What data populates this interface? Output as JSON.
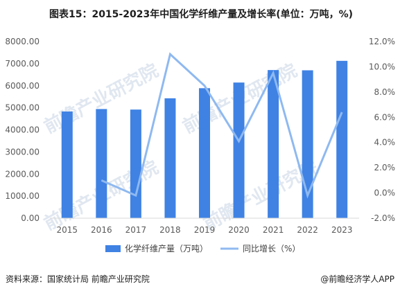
{
  "title": "图表15：2015-2023年中国化学纤维产量及增长率(单位：万吨，%)",
  "footer": {
    "source": "资料来源：国家统计局 前瞻产业研究院",
    "brand": "@前瞻经济学人APP"
  },
  "watermark": {
    "text": "前瞻产业研究院"
  },
  "colors": {
    "bar": "#3f82e4",
    "line": "#8fb9f0",
    "grid": "#d9d9d9",
    "axis_text": "#595959"
  },
  "chart_data": {
    "type": "bar",
    "categories": [
      "2015",
      "2016",
      "2017",
      "2018",
      "2019",
      "2020",
      "2021",
      "2022",
      "2023"
    ],
    "series": [
      {
        "name": "化学纤维产量（万吨）",
        "type": "bar",
        "axis": "left",
        "values": [
          4832,
          4944,
          4920,
          5430,
          5888,
          6144,
          6709,
          6698,
          7127
        ]
      },
      {
        "name": "同比增长（%）",
        "type": "line",
        "axis": "right",
        "values": [
          null,
          1.0,
          -0.2,
          11.0,
          8.5,
          4.1,
          9.5,
          -0.2,
          6.4
        ]
      }
    ],
    "left_axis": {
      "min": 0,
      "max": 8000,
      "ticks": [
        "0.00",
        "1000.00",
        "2000.00",
        "3000.00",
        "4000.00",
        "5000.00",
        "6000.00",
        "7000.00",
        "8000.00"
      ]
    },
    "right_axis": {
      "min": -2,
      "max": 12,
      "ticks": [
        "-2.0%",
        "0.0%",
        "2.0%",
        "4.0%",
        "6.0%",
        "8.0%",
        "10.0%",
        "12.0%"
      ]
    },
    "grid": false,
    "legend_position": "bottom"
  }
}
